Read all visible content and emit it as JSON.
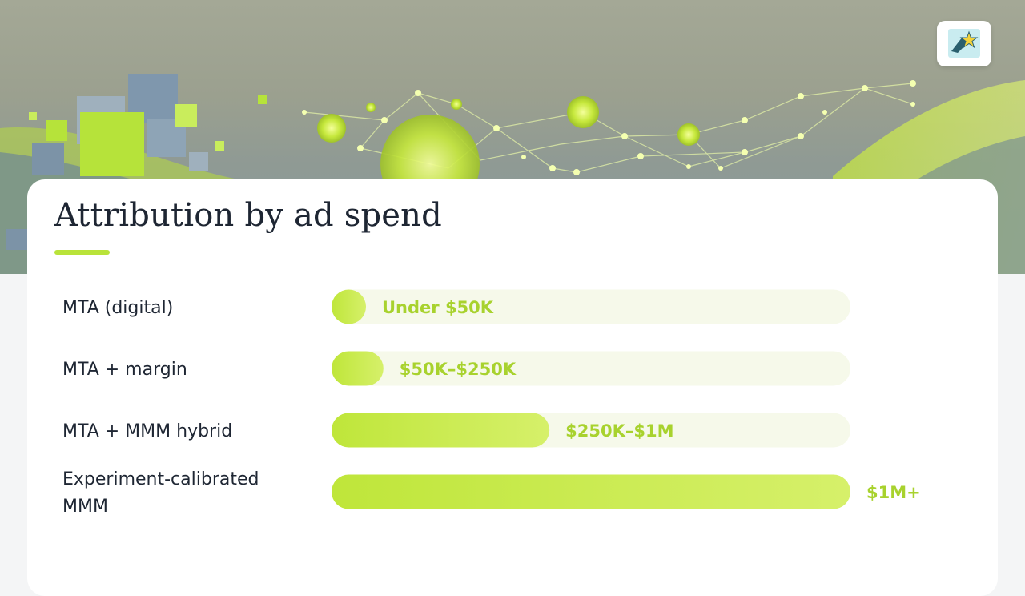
{
  "colors": {
    "accent": "#b9e33a",
    "label_text": "#a8d22e",
    "track": "#f6f9ea",
    "title": "#1e2633"
  },
  "logo": {
    "icon": "star-logo-icon"
  },
  "title": "Attribution by ad spend",
  "chart_data": {
    "type": "bar",
    "orientation": "horizontal",
    "title": "Attribution by ad spend",
    "xlabel": "",
    "ylabel": "",
    "xlim": [
      0,
      1
    ],
    "grid": false,
    "legend": "none",
    "categories": [
      [
        "MTA (digital)"
      ],
      [
        "MTA + margin"
      ],
      [
        "MTA + MMM hybrid"
      ],
      [
        "Experiment-calibrated",
        "MMM"
      ]
    ],
    "series": [
      {
        "values": [
          0.065,
          0.1,
          0.42,
          1.0
        ],
        "labels": [
          "Under $50K",
          "$50K–$250K",
          "$250K–$1M",
          "$1M+"
        ]
      }
    ]
  }
}
